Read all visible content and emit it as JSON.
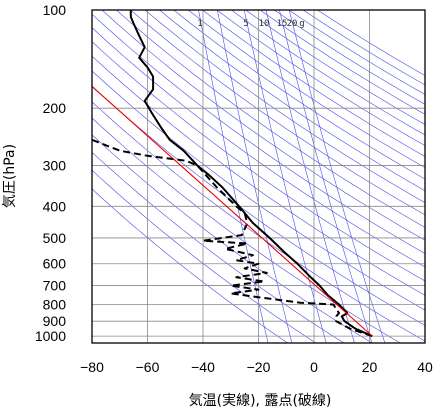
{
  "chart_data": {
    "type": "line",
    "title": "",
    "xlabel": "気温(実線), 露点(破線)",
    "ylabel": "気圧(hPa)",
    "x_axis": {
      "range": [
        -80,
        40
      ],
      "ticks": [
        -80,
        -60,
        -40,
        -20,
        0,
        20,
        40
      ],
      "tick_labels": [
        "−80",
        "−60",
        "−40",
        "−20",
        "0",
        "20",
        "40"
      ]
    },
    "y_axis": {
      "scale": "log",
      "range": [
        1050,
        100
      ],
      "ticks": [
        100,
        200,
        300,
        400,
        500,
        600,
        700,
        800,
        900,
        1000
      ],
      "tick_labels": [
        "100",
        "200",
        "300",
        "400",
        "500",
        "600",
        "700",
        "800",
        "900",
        "1000"
      ]
    },
    "grid": true,
    "background_lines": {
      "color": "#4a4aee",
      "dry_adiabats_potential_temperature_K": [
        260,
        270,
        280,
        290,
        300,
        310,
        320,
        330,
        340,
        350,
        360,
        370,
        380,
        390,
        400,
        410,
        420,
        430,
        440,
        450,
        460,
        470,
        480,
        490,
        500,
        510,
        520,
        530
      ],
      "saturation_mixing_ratio_g_per_kg": [
        1,
        2,
        5,
        10,
        15,
        20
      ]
    },
    "mixing_ratio_labels": [
      "1",
      "5",
      "10",
      "15",
      "20",
      "g"
    ],
    "series": [
      {
        "style": "solid",
        "color": "#000000",
        "points": [
          [
            21,
            1000
          ],
          [
            15,
            950
          ],
          [
            11,
            900
          ],
          [
            10,
            870
          ],
          [
            12,
            850
          ],
          [
            9,
            800
          ],
          [
            5,
            750
          ],
          [
            2,
            700
          ],
          [
            -2,
            650
          ],
          [
            -6,
            600
          ],
          [
            -11,
            550
          ],
          [
            -16,
            500
          ],
          [
            -22,
            450
          ],
          [
            -27,
            400
          ],
          [
            -33,
            350
          ],
          [
            -38,
            320
          ],
          [
            -42,
            300
          ],
          [
            -47,
            270
          ],
          [
            -52,
            250
          ],
          [
            -55,
            230
          ],
          [
            -58,
            210
          ],
          [
            -61,
            190
          ],
          [
            -58,
            175
          ],
          [
            -58,
            160
          ],
          [
            -60,
            150
          ],
          [
            -63,
            140
          ],
          [
            -61,
            130
          ],
          [
            -63,
            120
          ],
          [
            -65,
            110
          ],
          [
            -66,
            105
          ],
          [
            -66,
            100
          ]
        ]
      },
      {
        "style": "dashed",
        "color": "#000000",
        "points": [
          [
            21,
            1000
          ],
          [
            13,
            950
          ],
          [
            8,
            900
          ],
          [
            8,
            870
          ],
          [
            9,
            850
          ],
          [
            7,
            800
          ],
          [
            -5,
            790
          ],
          [
            -20,
            760
          ],
          [
            -30,
            740
          ],
          [
            -20,
            720
          ],
          [
            -30,
            700
          ],
          [
            -18,
            680
          ],
          [
            -28,
            660
          ],
          [
            -17,
            640
          ],
          [
            -25,
            620
          ],
          [
            -20,
            600
          ],
          [
            -28,
            585
          ],
          [
            -22,
            565
          ],
          [
            -32,
            540
          ],
          [
            -24,
            520
          ],
          [
            -40,
            510
          ],
          [
            -26,
            490
          ],
          [
            -24,
            450
          ],
          [
            -25,
            420
          ],
          [
            -28,
            400
          ],
          [
            -35,
            350
          ],
          [
            -42,
            300
          ],
          [
            -46,
            290
          ],
          [
            -60,
            280
          ],
          [
            -70,
            270
          ],
          [
            -75,
            260
          ],
          [
            -80,
            250
          ]
        ]
      },
      {
        "style": "solid",
        "color": "#ee0000",
        "points": [
          [
            21,
            1000
          ],
          [
            -84,
            160
          ]
        ]
      }
    ]
  }
}
